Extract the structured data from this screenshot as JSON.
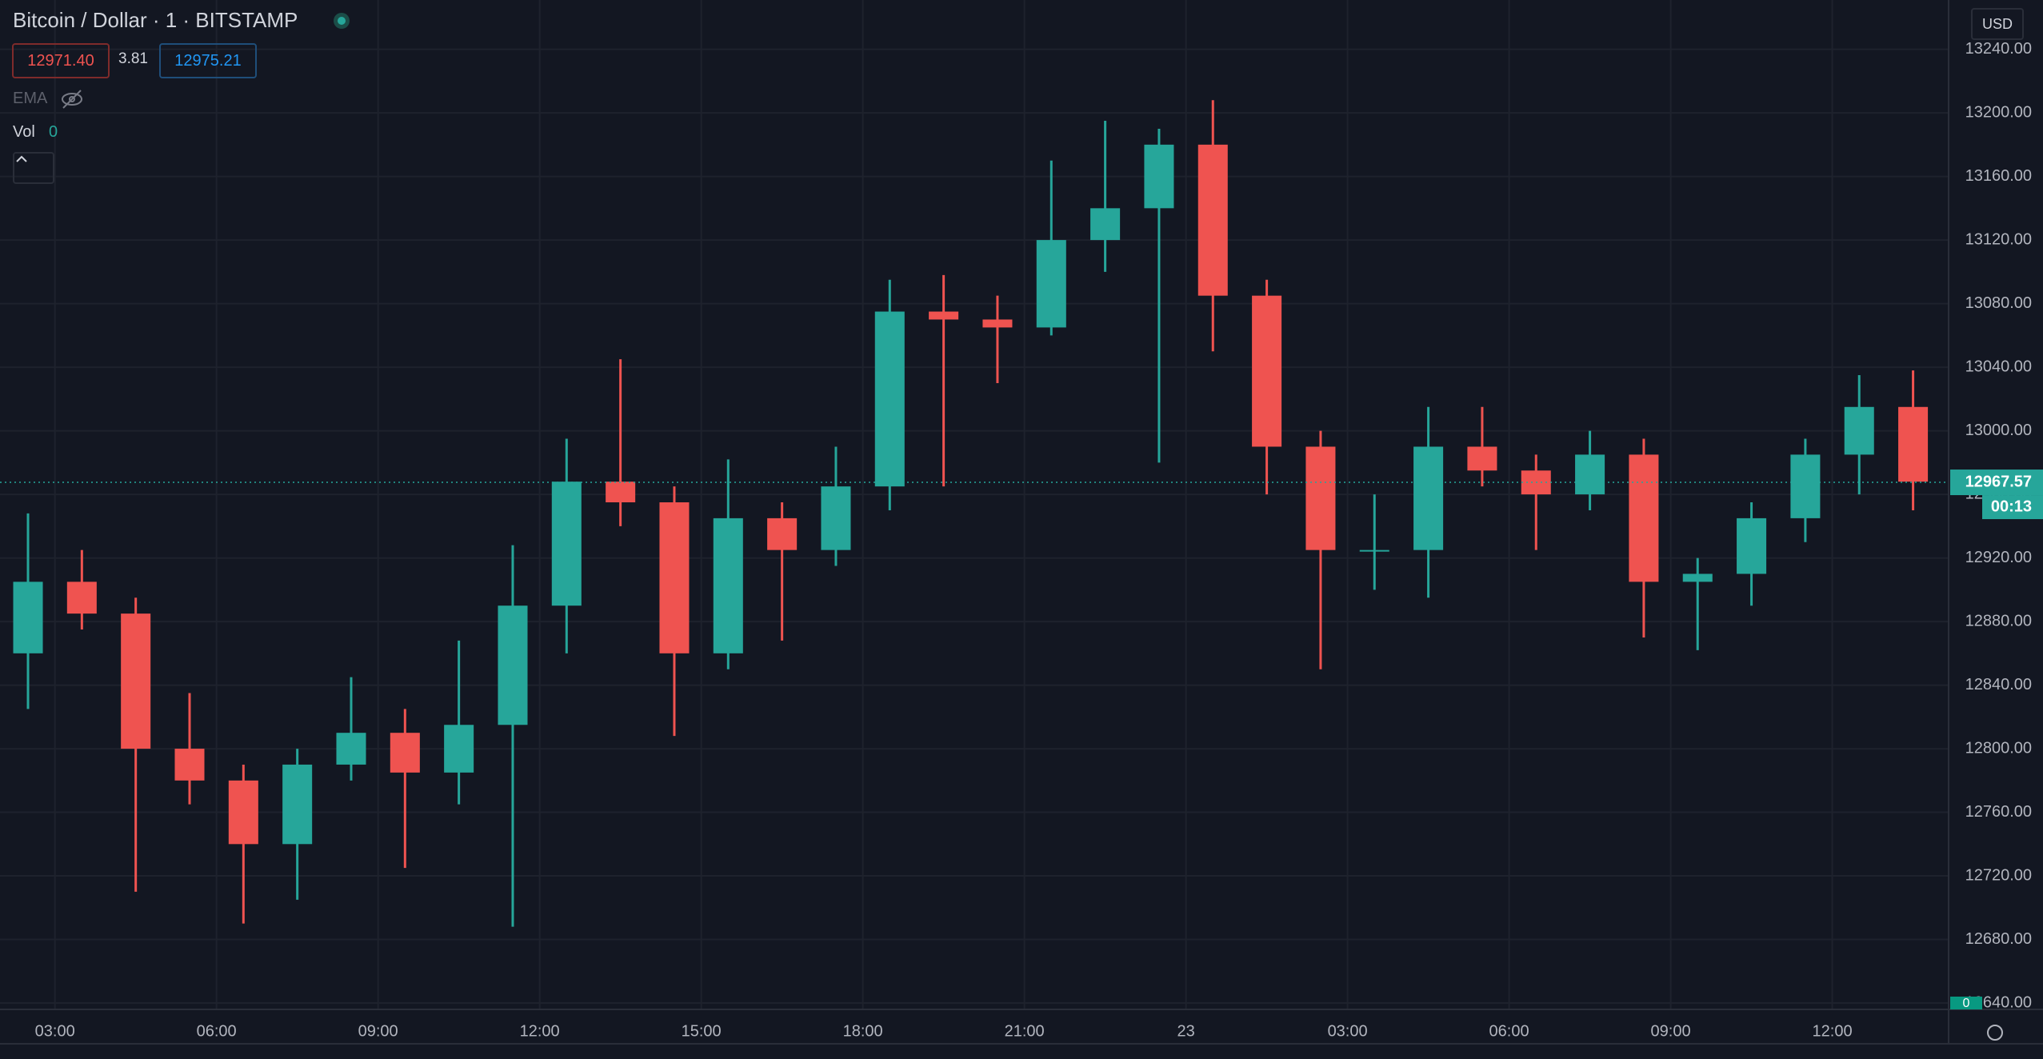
{
  "header": {
    "symbol": "Bitcoin / Dollar · 1 · BITSTAMP",
    "sell": "12971.40",
    "spread": "3.81",
    "buy": "12975.21",
    "indicators": [
      "EMA",
      "Vol"
    ],
    "volume_value": "0",
    "currency": "USD"
  },
  "chart_data": {
    "type": "candlestick",
    "x": [
      2,
      3,
      4,
      5,
      6,
      7,
      8,
      9,
      10,
      11,
      12,
      13,
      14,
      15,
      16,
      17,
      18,
      19,
      20,
      21,
      22,
      23,
      24,
      25,
      26,
      27,
      28,
      29,
      30,
      31,
      32,
      33,
      34,
      35,
      36,
      37
    ],
    "open": [
      12860,
      12905,
      12885,
      12800,
      12780,
      12740,
      12790,
      12810,
      12785,
      12815,
      12890,
      12968,
      12955,
      12860,
      12945,
      12925,
      12965,
      13075,
      13070,
      13065,
      13120,
      13140,
      13180,
      13085,
      12990,
      12925,
      12925,
      12990,
      12975,
      12960,
      12985,
      12905,
      12910,
      12945,
      12985,
      13015
    ],
    "high": [
      12948,
      12925,
      12895,
      12835,
      12790,
      12800,
      12845,
      12825,
      12868,
      12928,
      12995,
      13045,
      12965,
      12982,
      12955,
      12990,
      13095,
      13098,
      13085,
      13170,
      13195,
      13190,
      13208,
      13095,
      13000,
      12960,
      13015,
      13015,
      12985,
      13000,
      12995,
      12920,
      12955,
      12995,
      13035,
      13038
    ],
    "low": [
      12825,
      12875,
      12710,
      12765,
      12690,
      12705,
      12780,
      12725,
      12765,
      12688,
      12860,
      12940,
      12808,
      12850,
      12868,
      12915,
      12950,
      12965,
      13030,
      13060,
      13100,
      12980,
      13050,
      12960,
      12850,
      12900,
      12895,
      12965,
      12925,
      12950,
      12870,
      12862,
      12890,
      12930,
      12960,
      12950
    ],
    "close": [
      12905,
      12885,
      12800,
      12780,
      12740,
      12790,
      12810,
      12785,
      12815,
      12890,
      12968,
      12955,
      12860,
      12945,
      12925,
      12965,
      13075,
      13070,
      13065,
      13120,
      13140,
      13180,
      13085,
      12990,
      12925,
      12925,
      12990,
      12975,
      12960,
      12985,
      12905,
      12910,
      12945,
      12985,
      13015,
      12968
    ],
    "up_color": "#26a69a",
    "down_color": "#ef5350",
    "xlim": [
      1.98,
      38.16
    ],
    "xticks": [
      {
        "value": 3,
        "label": "03:00"
      },
      {
        "value": 6,
        "label": "06:00"
      },
      {
        "value": 9,
        "label": "09:00"
      },
      {
        "value": 12,
        "label": "12:00"
      },
      {
        "value": 15,
        "label": "15:00"
      },
      {
        "value": 18,
        "label": "18:00"
      },
      {
        "value": 21,
        "label": "21:00"
      },
      {
        "value": 24,
        "label": "23"
      },
      {
        "value": 27,
        "label": "03:00"
      },
      {
        "value": 30,
        "label": "06:00"
      },
      {
        "value": 33,
        "label": "09:00"
      },
      {
        "value": 36,
        "label": "12:00"
      }
    ],
    "ylim": [
      12636,
      13271
    ],
    "yticks": [
      {
        "value": 12640,
        "label": "12640.00"
      },
      {
        "value": 12680,
        "label": "12680.00"
      },
      {
        "value": 12720,
        "label": "12720.00"
      },
      {
        "value": 12760,
        "label": "12760.00"
      },
      {
        "value": 12800,
        "label": "12800.00"
      },
      {
        "value": 12840,
        "label": "12840.00"
      },
      {
        "value": 12880,
        "label": "12880.00"
      },
      {
        "value": 12920,
        "label": "12920.00"
      },
      {
        "value": 12960,
        "label": "12960.00"
      },
      {
        "value": 13000,
        "label": "13000.00"
      },
      {
        "value": 13040,
        "label": "13040.00"
      },
      {
        "value": 13080,
        "label": "13080.00"
      },
      {
        "value": 13120,
        "label": "13120.00"
      },
      {
        "value": 13160,
        "label": "13160.00"
      },
      {
        "value": 13200,
        "label": "13200.00"
      },
      {
        "value": 13240,
        "label": "13240.00"
      }
    ],
    "grid": true,
    "last_price": {
      "value": 12967.57,
      "label": "12967.57"
    },
    "countdown": "00:13",
    "volume_label": "0"
  }
}
